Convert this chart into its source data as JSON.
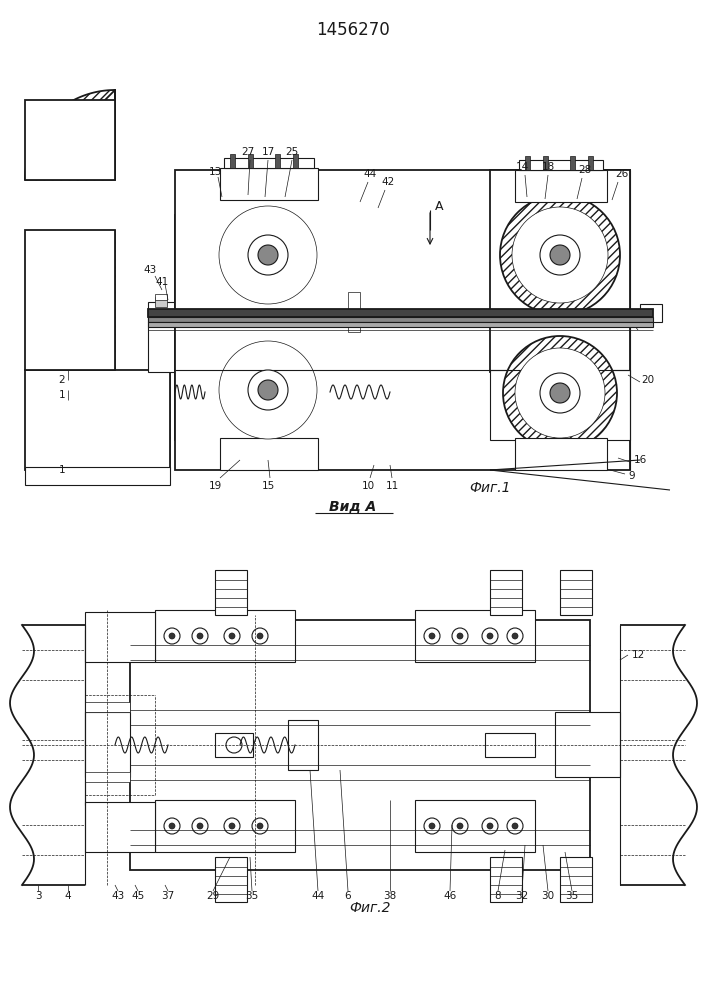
{
  "title": "1456270",
  "fig1_label": "Фиг.1",
  "fig2_label": "Фиг.2",
  "vid_label": "Вид А",
  "bg_color": "#ffffff",
  "line_color": "#1a1a1a",
  "fig_width": 7.07,
  "fig_height": 10.0,
  "dpi": 100
}
